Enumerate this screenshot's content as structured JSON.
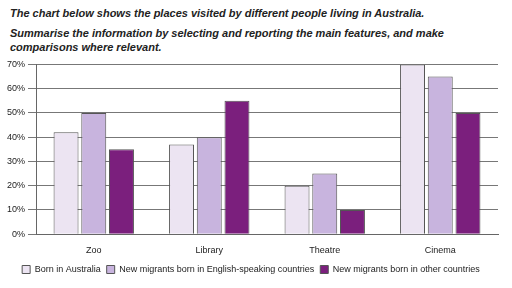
{
  "chart_data": {
    "type": "bar",
    "title": "The chart below shows the places visited by different people living in Australia.",
    "subtitle": "Summarise the information by selecting and reporting the main features, and make comparisons where relevant.",
    "categories": [
      "Zoo",
      "Library",
      "Theatre",
      "Cinema"
    ],
    "series": [
      {
        "name": "Born in Australia",
        "color": "#ece4f2",
        "values": [
          42,
          37,
          20,
          70
        ]
      },
      {
        "name": "New migrants born in English-speaking countries",
        "color": "#c8b4de",
        "values": [
          50,
          40,
          25,
          65
        ]
      },
      {
        "name": "New migrants born in other countries",
        "color": "#7b1f7d",
        "values": [
          35,
          55,
          10,
          50
        ]
      }
    ],
    "ylim": [
      0,
      70
    ],
    "yticks": [
      {
        "value": 0,
        "label": "0%"
      },
      {
        "value": 10,
        "label": "10%"
      },
      {
        "value": 20,
        "label": "20%"
      },
      {
        "value": 30,
        "label": "30%"
      },
      {
        "value": 40,
        "label": "40%"
      },
      {
        "value": 50,
        "label": "50%"
      },
      {
        "value": 60,
        "label": "60%"
      },
      {
        "value": 70,
        "label": "70%"
      }
    ],
    "grid": true,
    "legend": "bottom"
  }
}
